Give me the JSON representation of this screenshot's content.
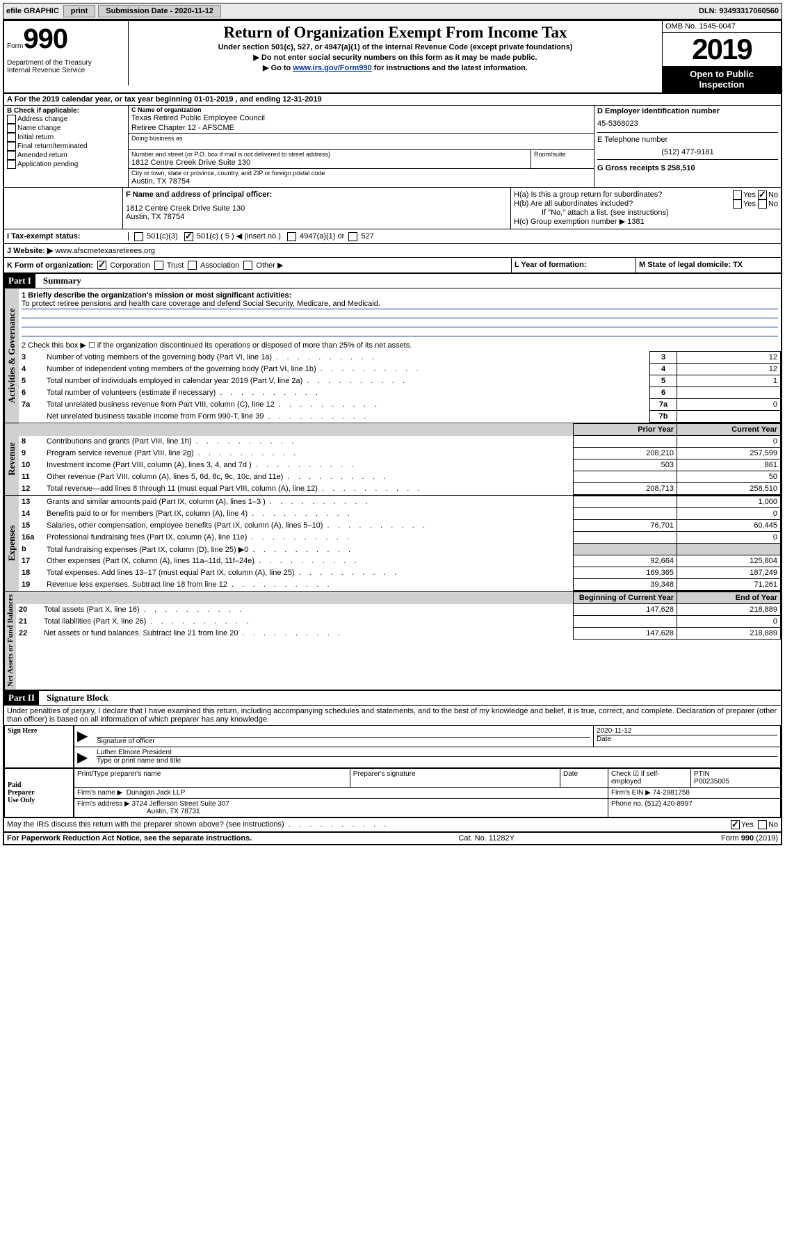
{
  "topbar": {
    "efile": "efile GRAPHIC",
    "print": "print",
    "subdate_label": "Submission Date - 2020-11-12",
    "dln": "DLN: 93493317060560"
  },
  "header": {
    "form_label": "Form",
    "form_no": "990",
    "title": "Return of Organization Exempt From Income Tax",
    "subtitle": "Under section 501(c), 527, or 4947(a)(1) of the Internal Revenue Code (except private foundations)",
    "note1": "▶ Do not enter social security numbers on this form as it may be made public.",
    "note2_pre": "▶ Go to ",
    "note2_link": "www.irs.gov/Form990",
    "note2_post": " for instructions and the latest information.",
    "omb": "OMB No. 1545-0047",
    "year": "2019",
    "open1": "Open to Public",
    "open2": "Inspection",
    "dept1": "Department of the Treasury",
    "dept2": "Internal Revenue Service"
  },
  "lineA": "A For the 2019 calendar year, or tax year beginning 01-01-2019   , and ending 12-31-2019",
  "sectionB": {
    "label": "B Check if applicable:",
    "opts": [
      "Address change",
      "Name change",
      "Initial return",
      "Final return/terminated",
      "Amended return",
      "Application pending"
    ]
  },
  "sectionC": {
    "label": "C Name of organization",
    "name1": "Texas Retired Public Employee Council",
    "name2": "Retiree Chapter 12 - AFSCME",
    "dba_label": "Doing business as",
    "addr_label": "Number and street (or P.O. box if mail is not delivered to street address)",
    "room_label": "Room/suite",
    "addr": "1812 Centre Creek Drive Suite 130",
    "city_label": "City or town, state or province, country, and ZIP or foreign postal code",
    "city": "Austin, TX  78754"
  },
  "sectionD": {
    "label": "D Employer identification number",
    "val": "45-5368023"
  },
  "sectionE": {
    "label": "E Telephone number",
    "val": "(512) 477-9181"
  },
  "sectionG": {
    "label": "G Gross receipts $ 258,510"
  },
  "sectionF": {
    "label": "F  Name and address of principal officer:",
    "addr": "1812 Centre Creek Drive Suite 130",
    "city": "Austin, TX  78754"
  },
  "sectionH": {
    "a": "H(a)  Is this a group return for subordinates?",
    "b": "H(b)  Are all subordinates included?",
    "bnote": "If \"No,\" attach a list. (see instructions)",
    "c": "H(c)  Group exemption number ▶   1381"
  },
  "lineI": {
    "lead": "I   Tax-exempt status:",
    "o1": "501(c)(3)",
    "o2": "501(c) ( 5 ) ◀ (insert no.)",
    "o3": "4947(a)(1) or",
    "o4": "527"
  },
  "lineJ": {
    "lead": "J   Website: ▶ ",
    "val": "www.afscmetexasretirees.org"
  },
  "lineK": {
    "lead": "K Form of organization:",
    "o1": "Corporation",
    "o2": "Trust",
    "o3": "Association",
    "o4": "Other ▶"
  },
  "lineL": {
    "lead": "L Year of formation:"
  },
  "lineM": {
    "lead": "M State of legal domicile: TX"
  },
  "part1": {
    "hdr": "Part I",
    "title": "Summary"
  },
  "summary": {
    "vtab1": "Activities & Governance",
    "vtab2": "Revenue",
    "vtab3": "Expenses",
    "vtab4": "Net Assets or Fund Balances",
    "q1": "1  Briefly describe the organization's mission or most significant activities:",
    "q1a": "To protect retiree pensions and health care coverage and defend Social Security, Medicare, and Medicaid.",
    "q2": "2   Check this box ▶ ☐  if the organization discontinued its operations or disposed of more than 25% of its net assets.",
    "rows_gov": [
      {
        "n": "3",
        "t": "Number of voting members of the governing body (Part VI, line 1a)",
        "rn": "3",
        "v": "12"
      },
      {
        "n": "4",
        "t": "Number of independent voting members of the governing body (Part VI, line 1b)",
        "rn": "4",
        "v": "12"
      },
      {
        "n": "5",
        "t": "Total number of individuals employed in calendar year 2019 (Part V, line 2a)",
        "rn": "5",
        "v": "1"
      },
      {
        "n": "6",
        "t": "Total number of volunteers (estimate if necessary)",
        "rn": "6",
        "v": ""
      },
      {
        "n": "7a",
        "t": "Total unrelated business revenue from Part VIII, column (C), line 12",
        "rn": "7a",
        "v": "0"
      },
      {
        "n": "",
        "t": "Net unrelated business taxable income from Form 990-T, line 39",
        "rn": "7b",
        "v": ""
      }
    ],
    "hdr_prior": "Prior Year",
    "hdr_curr": "Current Year",
    "rows_rev": [
      {
        "n": "8",
        "t": "Contributions and grants (Part VIII, line 1h)",
        "p": "",
        "c": "0"
      },
      {
        "n": "9",
        "t": "Program service revenue (Part VIII, line 2g)",
        "p": "208,210",
        "c": "257,599"
      },
      {
        "n": "10",
        "t": "Investment income (Part VIII, column (A), lines 3, 4, and 7d )",
        "p": "503",
        "c": "861"
      },
      {
        "n": "11",
        "t": "Other revenue (Part VIII, column (A), lines 5, 6d, 8c, 9c, 10c, and 11e)",
        "p": "",
        "c": "50"
      },
      {
        "n": "12",
        "t": "Total revenue—add lines 8 through 11 (must equal Part VIII, column (A), line 12)",
        "p": "208,713",
        "c": "258,510"
      }
    ],
    "rows_exp": [
      {
        "n": "13",
        "t": "Grants and similar amounts paid (Part IX, column (A), lines 1–3 )",
        "p": "",
        "c": "1,000"
      },
      {
        "n": "14",
        "t": "Benefits paid to or for members (Part IX, column (A), line 4)",
        "p": "",
        "c": "0"
      },
      {
        "n": "15",
        "t": "Salaries, other compensation, employee benefits (Part IX, column (A), lines 5–10)",
        "p": "76,701",
        "c": "60,445"
      },
      {
        "n": "16a",
        "t": "Professional fundraising fees (Part IX, column (A), line 11e)",
        "p": "",
        "c": "0"
      },
      {
        "n": "b",
        "t": "Total fundraising expenses (Part IX, column (D), line 25) ▶0",
        "p": "—shade—",
        "c": "—shade—"
      },
      {
        "n": "17",
        "t": "Other expenses (Part IX, column (A), lines 11a–11d, 11f–24e)",
        "p": "92,664",
        "c": "125,804"
      },
      {
        "n": "18",
        "t": "Total expenses. Add lines 13–17 (must equal Part IX, column (A), line 25)",
        "p": "169,365",
        "c": "187,249"
      },
      {
        "n": "19",
        "t": "Revenue less expenses. Subtract line 18 from line 12",
        "p": "39,348",
        "c": "71,261"
      }
    ],
    "hdr_boy": "Beginning of Current Year",
    "hdr_eoy": "End of Year",
    "rows_net": [
      {
        "n": "20",
        "t": "Total assets (Part X, line 16)",
        "p": "147,628",
        "c": "218,889"
      },
      {
        "n": "21",
        "t": "Total liabilities (Part X, line 26)",
        "p": "",
        "c": "0"
      },
      {
        "n": "22",
        "t": "Net assets or fund balances. Subtract line 21 from line 20",
        "p": "147,628",
        "c": "218,889"
      }
    ]
  },
  "part2": {
    "hdr": "Part II",
    "title": "Signature Block"
  },
  "sigtext": "Under penalties of perjury, I declare that I have examined this return, including accompanying schedules and statements, and to the best of my knowledge and belief, it is true, correct, and complete. Declaration of preparer (other than officer) is based on all information of which preparer has any knowledge.",
  "sign": {
    "here": "Sign Here",
    "sig_officer": "Signature of officer",
    "date_lbl": "Date",
    "date_val": "2020-11-12",
    "name": "Luther Elmore  President",
    "name_lbl": "Type or print name and title"
  },
  "paid": {
    "lead1": "Paid",
    "lead2": "Preparer",
    "lead3": "Use Only",
    "h1": "Print/Type preparer's name",
    "h2": "Preparer's signature",
    "h3": "Date",
    "h4pre": "Check ☑ if self-employed",
    "h5": "PTIN",
    "ptin": "P00235005",
    "firm_lbl": "Firm's name    ▶",
    "firm": "Dunagan Jack LLP",
    "ein_lbl": "Firm's EIN ▶",
    "ein": "74-2981758",
    "addr_lbl": "Firm's address ▶",
    "addr1": "3724 Jefferson Street Suite 307",
    "addr2": "Austin, TX  78731",
    "phone_lbl": "Phone no.",
    "phone": "(512) 420-8997"
  },
  "discuss": "May the IRS discuss this return with the preparer shown above? (see instructions)",
  "footer": {
    "l": "For Paperwork Reduction Act Notice, see the separate instructions.",
    "c": "Cat. No. 11282Y",
    "r": "Form 990 (2019)"
  }
}
